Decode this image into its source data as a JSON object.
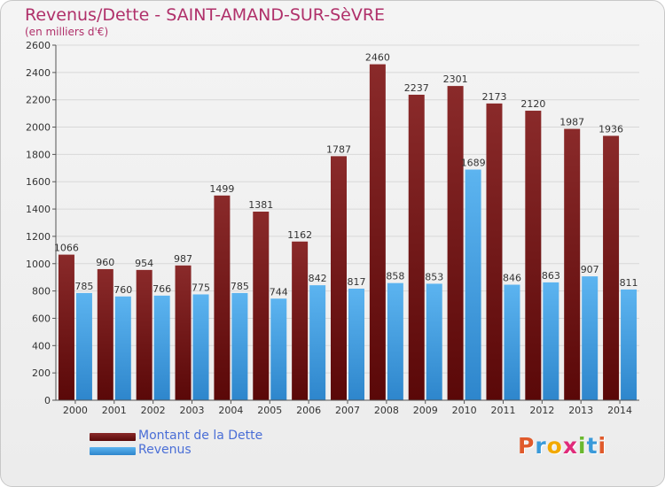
{
  "header": {
    "title": "Revenus/Dette - SAINT-AMAND-SUR-SèVRE",
    "subtitle": "(en milliers d'€)"
  },
  "legend": {
    "items": [
      {
        "label": "Montant de la Dette",
        "color": "#7a1a1a"
      },
      {
        "label": "Revenus",
        "color": "#4aa6e8"
      }
    ]
  },
  "logo": {
    "text": "Proxiti",
    "colors": [
      "#e05a2b",
      "#3a9ad9",
      "#f2a900",
      "#e02b7a",
      "#6ab82e",
      "#3a9ad9",
      "#e05a2b"
    ]
  },
  "chart_data": {
    "type": "bar",
    "title": "Revenus/Dette - SAINT-AMAND-SUR-SèVRE",
    "subtitle": "(en milliers d'€)",
    "xlabel": "",
    "ylabel": "",
    "categories": [
      "2000",
      "2001",
      "2002",
      "2003",
      "2004",
      "2005",
      "2006",
      "2007",
      "2008",
      "2009",
      "2010",
      "2011",
      "2012",
      "2013",
      "2014"
    ],
    "ylim": [
      0,
      2600
    ],
    "yticks": [
      0,
      200,
      400,
      600,
      800,
      1000,
      1200,
      1400,
      1600,
      1800,
      2000,
      2200,
      2400,
      2600
    ],
    "grid": true,
    "legend_position": "bottom-left",
    "series": [
      {
        "name": "Montant de la Dette",
        "color": "#7a1a1a",
        "values": [
          1066,
          960,
          954,
          987,
          1499,
          1381,
          1162,
          1787,
          2460,
          2237,
          2301,
          2173,
          2120,
          1987,
          1936
        ]
      },
      {
        "name": "Revenus",
        "color": "#4aa6e8",
        "values": [
          785,
          760,
          766,
          775,
          785,
          744,
          842,
          817,
          858,
          853,
          1689,
          846,
          863,
          907,
          811
        ]
      }
    ]
  }
}
